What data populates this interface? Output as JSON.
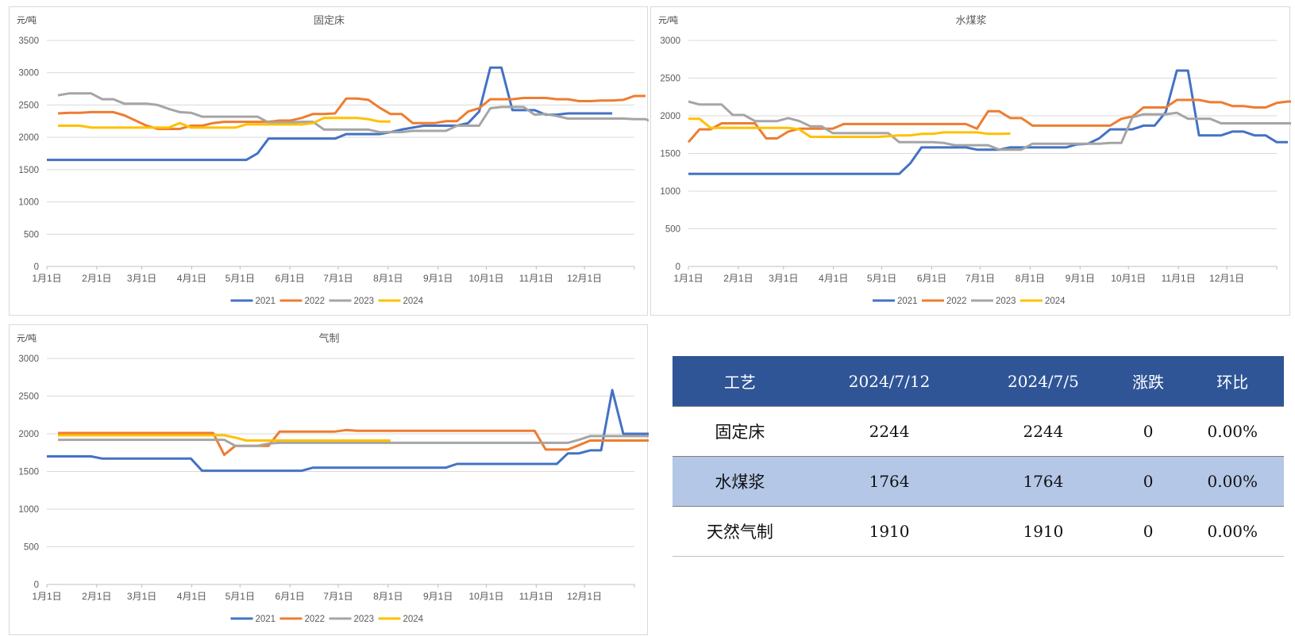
{
  "colors": {
    "2021": "#4472c4",
    "2022": "#ed7d31",
    "2023": "#a5a5a5",
    "2024": "#ffc000",
    "table_header_bg": "#2f5597",
    "table_alt_row_bg": "#b4c7e7"
  },
  "chart_data": [
    {
      "type": "line",
      "title": "固定床",
      "ylabel": "元/吨",
      "xlabel": "",
      "ylim": [
        0,
        3500
      ],
      "yticks": [
        0,
        500,
        1000,
        1500,
        2000,
        2500,
        3000,
        3500
      ],
      "x_tick_labels": [
        "1月1日",
        "2月1日",
        "3月1日",
        "4月1日",
        "5月1日",
        "6月1日",
        "7月1日",
        "8月1日",
        "9月1日",
        "10月1日",
        "11月1日",
        "12月1日"
      ],
      "grid": true,
      "legend_position": "bottom",
      "x_unit": "week of year (1-53)",
      "series": [
        {
          "name": "2021",
          "values": [
            1650,
            1650,
            1650,
            1650,
            1650,
            1650,
            1650,
            1650,
            1650,
            1650,
            1650,
            1650,
            1650,
            1650,
            1650,
            1650,
            1650,
            1650,
            1650,
            1750,
            1980,
            1980,
            1980,
            1980,
            1980,
            1980,
            1980,
            2050,
            2050,
            2050,
            2050,
            2080,
            2120,
            2150,
            2180,
            2180,
            2180,
            2180,
            2220,
            2400,
            3080,
            3080,
            2420,
            2420,
            2420,
            2350,
            2350,
            2370,
            2370,
            2370,
            2370,
            2370
          ]
        },
        {
          "name": "2022",
          "start": 1,
          "values": [
            2370,
            2380,
            2380,
            2390,
            2390,
            2390,
            2340,
            2260,
            2180,
            2130,
            2130,
            2130,
            2180,
            2180,
            2220,
            2240,
            2240,
            2240,
            2240,
            2240,
            2260,
            2260,
            2300,
            2360,
            2360,
            2370,
            2600,
            2600,
            2580,
            2460,
            2360,
            2360,
            2220,
            2220,
            2220,
            2250,
            2250,
            2400,
            2450,
            2590,
            2590,
            2590,
            2610,
            2610,
            2610,
            2590,
            2590,
            2560,
            2560,
            2570,
            2570,
            2580,
            2640,
            2640
          ]
        },
        {
          "name": "2023",
          "start": 1,
          "values": [
            2650,
            2680,
            2680,
            2680,
            2590,
            2590,
            2520,
            2520,
            2520,
            2500,
            2440,
            2390,
            2380,
            2320,
            2320,
            2320,
            2320,
            2320,
            2320,
            2230,
            2230,
            2230,
            2240,
            2240,
            2120,
            2120,
            2120,
            2120,
            2120,
            2080,
            2080,
            2080,
            2100,
            2100,
            2100,
            2100,
            2180,
            2180,
            2180,
            2450,
            2470,
            2470,
            2470,
            2350,
            2360,
            2330,
            2290,
            2290,
            2290,
            2290,
            2290,
            2290,
            2280,
            2280,
            2210
          ]
        },
        {
          "name": "2024",
          "start": 1,
          "values": [
            2180,
            2180,
            2180,
            2150,
            2150,
            2150,
            2150,
            2150,
            2150,
            2150,
            2150,
            2220,
            2150,
            2150,
            2150,
            2150,
            2150,
            2200,
            2200,
            2200,
            2200,
            2200,
            2200,
            2220,
            2300,
            2300,
            2300,
            2300,
            2280,
            2244,
            2244
          ]
        }
      ]
    },
    {
      "type": "line",
      "title": "水煤浆",
      "ylabel": "元/吨",
      "xlabel": "",
      "ylim": [
        0,
        3000
      ],
      "yticks": [
        0,
        500,
        1000,
        1500,
        2000,
        2500,
        3000
      ],
      "x_tick_labels": [
        "1月1日",
        "2月1日",
        "3月1日",
        "4月1日",
        "5月1日",
        "6月1日",
        "7月1日",
        "8月1日",
        "9月1日",
        "10月1日",
        "11月1日",
        "12月1日"
      ],
      "grid": true,
      "legend_position": "bottom",
      "x_unit": "week of year (1-53)",
      "series": [
        {
          "name": "2021",
          "values": [
            1230,
            1230,
            1230,
            1230,
            1230,
            1230,
            1230,
            1230,
            1230,
            1230,
            1230,
            1230,
            1230,
            1230,
            1230,
            1230,
            1230,
            1230,
            1230,
            1230,
            1370,
            1580,
            1580,
            1580,
            1580,
            1580,
            1550,
            1550,
            1550,
            1580,
            1580,
            1580,
            1580,
            1580,
            1580,
            1620,
            1630,
            1700,
            1820,
            1820,
            1820,
            1870,
            1870,
            2050,
            2600,
            2600,
            1740,
            1740,
            1740,
            1790,
            1790,
            1740,
            1740,
            1650,
            1650
          ]
        },
        {
          "name": "2022",
          "start": 0,
          "values": [
            1650,
            1820,
            1820,
            1900,
            1900,
            1900,
            1900,
            1700,
            1700,
            1790,
            1830,
            1830,
            1830,
            1830,
            1890,
            1890,
            1890,
            1890,
            1890,
            1890,
            1890,
            1890,
            1890,
            1890,
            1890,
            1890,
            1830,
            2060,
            2060,
            1970,
            1970,
            1870,
            1870,
            1870,
            1870,
            1870,
            1870,
            1870,
            1870,
            1960,
            1990,
            2110,
            2110,
            2110,
            2210,
            2210,
            2210,
            2180,
            2180,
            2130,
            2130,
            2110,
            2110,
            2170,
            2190,
            2190
          ]
        },
        {
          "name": "2023",
          "start": 0,
          "values": [
            2190,
            2150,
            2150,
            2150,
            2010,
            2010,
            1930,
            1930,
            1930,
            1970,
            1930,
            1860,
            1860,
            1770,
            1770,
            1770,
            1770,
            1770,
            1770,
            1650,
            1650,
            1650,
            1650,
            1640,
            1610,
            1610,
            1610,
            1610,
            1550,
            1550,
            1550,
            1630,
            1630,
            1630,
            1630,
            1630,
            1630,
            1630,
            1640,
            1640,
            1980,
            2020,
            2020,
            2020,
            2040,
            1960,
            1960,
            1960,
            1900,
            1900,
            1900,
            1900,
            1900,
            1900,
            1900,
            1900
          ]
        },
        {
          "name": "2024",
          "start": 0,
          "values": [
            1960,
            1960,
            1840,
            1840,
            1840,
            1840,
            1840,
            1840,
            1840,
            1840,
            1820,
            1720,
            1720,
            1720,
            1720,
            1720,
            1720,
            1720,
            1730,
            1740,
            1740,
            1760,
            1760,
            1780,
            1780,
            1780,
            1780,
            1760,
            1760,
            1764
          ]
        }
      ]
    },
    {
      "type": "line",
      "title": "气制",
      "ylabel": "元/吨",
      "xlabel": "",
      "ylim": [
        0,
        3000
      ],
      "yticks": [
        0,
        500,
        1000,
        1500,
        2000,
        2500,
        3000
      ],
      "x_tick_labels": [
        "1月1日",
        "2月1日",
        "3月1日",
        "4月1日",
        "5月1日",
        "6月1日",
        "7月1日",
        "8月1日",
        "9月1日",
        "10月1日",
        "11月1日",
        "12月1日"
      ],
      "grid": true,
      "legend_position": "bottom",
      "x_unit": "week of year (1-53)",
      "series": [
        {
          "name": "2021",
          "values": [
            1700,
            1700,
            1700,
            1700,
            1700,
            1670,
            1670,
            1670,
            1670,
            1670,
            1670,
            1670,
            1670,
            1670,
            1510,
            1510,
            1510,
            1510,
            1510,
            1510,
            1510,
            1510,
            1510,
            1510,
            1550,
            1550,
            1550,
            1550,
            1550,
            1550,
            1550,
            1550,
            1550,
            1550,
            1550,
            1550,
            1550,
            1600,
            1600,
            1600,
            1600,
            1600,
            1600,
            1600,
            1600,
            1600,
            1600,
            1740,
            1740,
            1780,
            1780,
            2580,
            2000,
            2000,
            2000,
            2000
          ]
        },
        {
          "name": "2022",
          "start": 1,
          "values": [
            2010,
            2010,
            2010,
            2010,
            2010,
            2010,
            2010,
            2010,
            2010,
            2010,
            2010,
            2010,
            2010,
            2010,
            2010,
            1720,
            1840,
            1840,
            1840,
            1840,
            2030,
            2030,
            2030,
            2030,
            2030,
            2030,
            2050,
            2040,
            2040,
            2040,
            2040,
            2040,
            2040,
            2040,
            2040,
            2040,
            2040,
            2040,
            2040,
            2040,
            2040,
            2040,
            2040,
            2040,
            1790,
            1790,
            1790,
            1850,
            1910,
            1910,
            1910,
            1910,
            1910,
            1910,
            1910
          ]
        },
        {
          "name": "2023",
          "start": 1,
          "values": [
            1920,
            1920,
            1920,
            1920,
            1920,
            1920,
            1920,
            1920,
            1920,
            1920,
            1920,
            1920,
            1920,
            1920,
            1920,
            1920,
            1840,
            1840,
            1840,
            1870,
            1880,
            1880,
            1880,
            1880,
            1880,
            1880,
            1880,
            1880,
            1880,
            1880,
            1880,
            1880,
            1880,
            1880,
            1880,
            1880,
            1880,
            1880,
            1880,
            1880,
            1880,
            1880,
            1880,
            1880,
            1880,
            1880,
            1880,
            1920,
            1970,
            1970,
            1970,
            1970,
            1970,
            1970,
            1970
          ]
        },
        {
          "name": "2024",
          "start": 1,
          "values": [
            1980,
            1980,
            1980,
            1980,
            1980,
            1980,
            1980,
            1980,
            1980,
            1980,
            1980,
            1980,
            1980,
            1980,
            1980,
            1980,
            1950,
            1910,
            1910,
            1910,
            1910,
            1910,
            1910,
            1910,
            1910,
            1910,
            1910,
            1910,
            1910,
            1910,
            1910
          ]
        }
      ]
    },
    {
      "type": "table",
      "columns": [
        "工艺",
        "2024/7/12",
        "2024/7/5",
        "涨跌",
        "环比"
      ],
      "rows": [
        [
          "固定床",
          "2244",
          "2244",
          "0",
          "0.00%"
        ],
        [
          "水煤浆",
          "1764",
          "1764",
          "0",
          "0.00%"
        ],
        [
          "天然气制",
          "1910",
          "1910",
          "0",
          "0.00%"
        ]
      ]
    }
  ],
  "charts": [
    {
      "title": "固定床",
      "unit": "元/吨",
      "legend": [
        "2021",
        "2022",
        "2023",
        "2024"
      ]
    },
    {
      "title": "水煤浆",
      "unit": "元/吨",
      "legend": [
        "2021",
        "2022",
        "2023",
        "2024"
      ]
    },
    {
      "title": "气制",
      "unit": "元/吨",
      "legend": [
        "2021",
        "2022",
        "2023",
        "2024"
      ]
    }
  ],
  "table": {
    "headers": [
      "工艺",
      "2024/7/12",
      "2024/7/5",
      "涨跌",
      "环比"
    ],
    "rows": [
      {
        "name": "固定床",
        "current": "2244",
        "previous": "2244",
        "change": "0",
        "ratio": "0.00%"
      },
      {
        "name": "水煤浆",
        "current": "1764",
        "previous": "1764",
        "change": "0",
        "ratio": "0.00%"
      },
      {
        "name": "天然气制",
        "current": "1910",
        "previous": "1910",
        "change": "0",
        "ratio": "0.00%"
      }
    ]
  }
}
